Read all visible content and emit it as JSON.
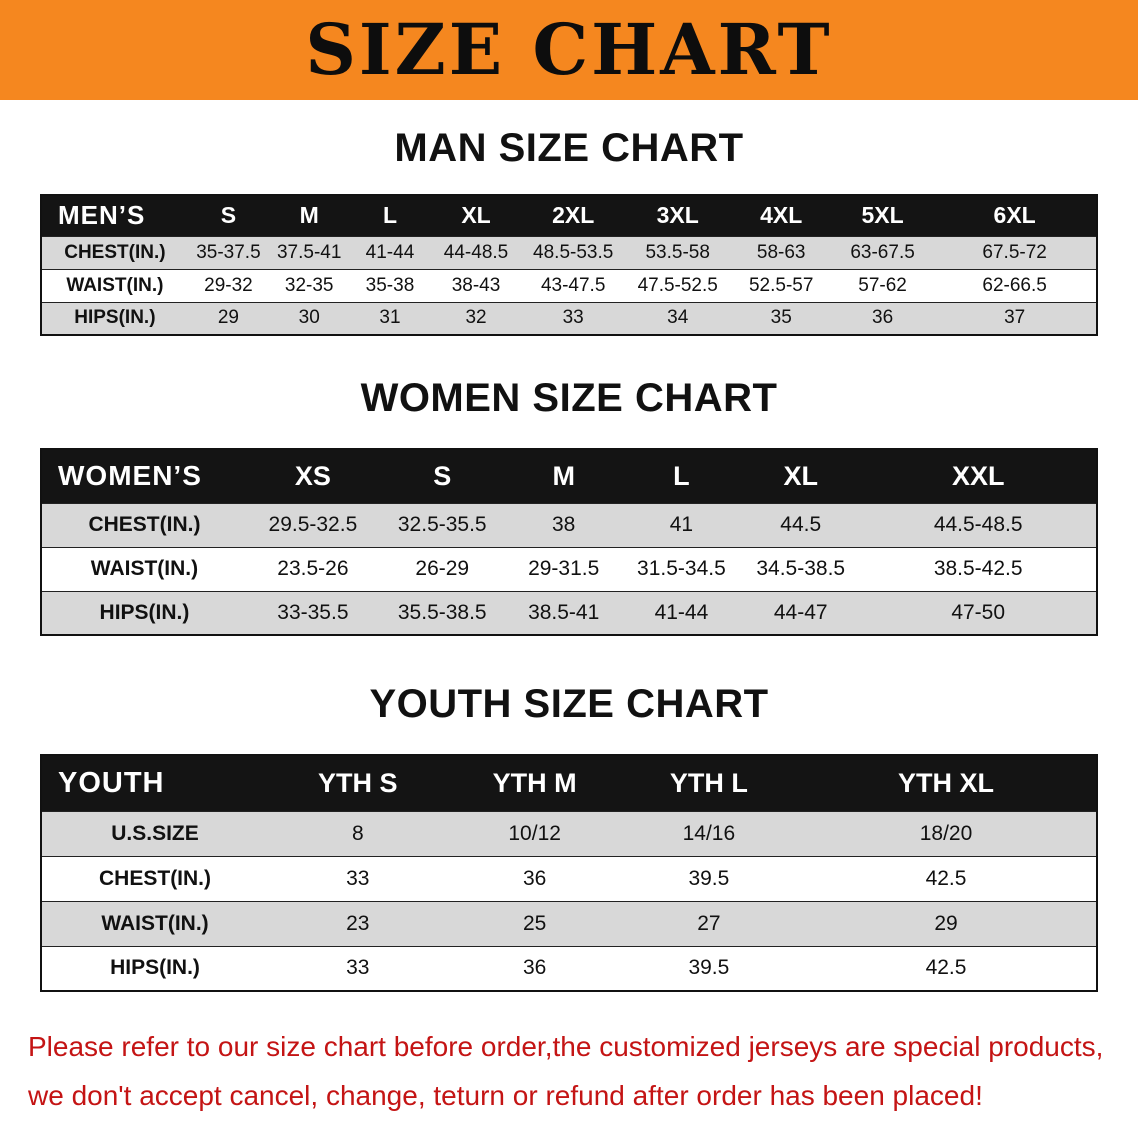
{
  "banner": {
    "title": "SIZE CHART"
  },
  "sections": [
    {
      "id": "men",
      "heading": "MAN SIZE CHART",
      "table": {
        "header": [
          "MEN’S",
          "S",
          "M",
          "L",
          "XL",
          "2XL",
          "3XL",
          "4XL",
          "5XL",
          "6XL"
        ],
        "rows": [
          [
            "CHEST(IN.)",
            "35-37.5",
            "37.5-41",
            "41-44",
            "44-48.5",
            "48.5-53.5",
            "53.5-58",
            "58-63",
            "63-67.5",
            "67.5-72"
          ],
          [
            "WAIST(IN.)",
            "29-32",
            "32-35",
            "35-38",
            "38-43",
            "43-47.5",
            "47.5-52.5",
            "52.5-57",
            "57-62",
            "62-66.5"
          ],
          [
            "HIPS(IN.)",
            "29",
            "30",
            "31",
            "32",
            "33",
            "34",
            "35",
            "36",
            "37"
          ]
        ]
      }
    },
    {
      "id": "women",
      "heading": "WOMEN SIZE CHART",
      "table": {
        "header": [
          "WOMEN’S",
          "XS",
          "S",
          "M",
          "L",
          "XL",
          "XXL"
        ],
        "rows": [
          [
            "CHEST(IN.)",
            "29.5-32.5",
            "32.5-35.5",
            "38",
            "41",
            "44.5",
            "44.5-48.5"
          ],
          [
            "WAIST(IN.)",
            "23.5-26",
            "26-29",
            "29-31.5",
            "31.5-34.5",
            "34.5-38.5",
            "38.5-42.5"
          ],
          [
            "HIPS(IN.)",
            "33-35.5",
            "35.5-38.5",
            "38.5-41",
            "41-44",
            "44-47",
            "47-50"
          ]
        ]
      }
    },
    {
      "id": "youth",
      "heading": "YOUTH SIZE CHART",
      "table": {
        "header": [
          "YOUTH",
          "YTH S",
          "YTH M",
          "YTH L",
          "YTH XL"
        ],
        "rows": [
          [
            "U.S.SIZE",
            "8",
            "10/12",
            "14/16",
            "18/20"
          ],
          [
            "CHEST(IN.)",
            "33",
            "36",
            "39.5",
            "42.5"
          ],
          [
            "WAIST(IN.)",
            "23",
            "25",
            "27",
            "29"
          ],
          [
            "HIPS(IN.)",
            "33",
            "36",
            "39.5",
            "42.5"
          ]
        ]
      }
    }
  ],
  "footer": {
    "line1": "Please refer to our size chart before order,the customized jerseys are special products,",
    "line2": "we don't accept cancel, change, teturn or refund after order has been placed!"
  },
  "colors": {
    "banner_bg": "#f5871f",
    "header_bg": "#141414",
    "row_alt_bg": "#d8d8d8",
    "footer_text": "#c41414"
  }
}
